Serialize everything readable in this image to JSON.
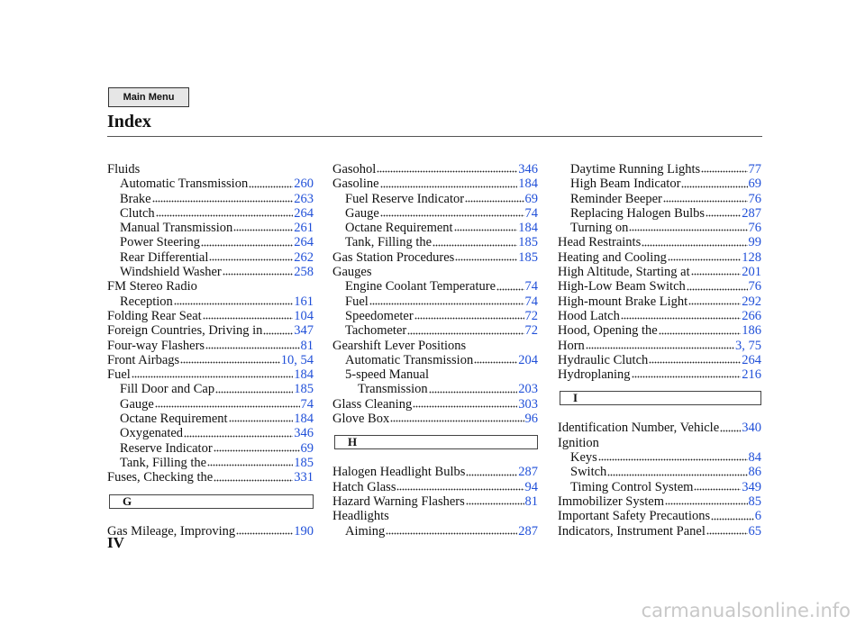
{
  "header": {
    "menu_button": "Main Menu",
    "title": "Index"
  },
  "columns": [
    {
      "items": [
        {
          "text": "Fluids",
          "indent": 0
        },
        {
          "text": "Automatic Transmission",
          "indent": 1,
          "page": 260
        },
        {
          "text": "Brake",
          "indent": 1,
          "page": 263
        },
        {
          "text": "Clutch",
          "indent": 1,
          "page": 264
        },
        {
          "text": "Manual Transmission",
          "indent": 1,
          "page": 261
        },
        {
          "text": "Power Steering",
          "indent": 1,
          "page": 264
        },
        {
          "text": "Rear Differential",
          "indent": 1,
          "page": 262
        },
        {
          "text": "Windshield Washer",
          "indent": 1,
          "page": 258
        },
        {
          "text": "FM Stereo Radio",
          "indent": 0
        },
        {
          "text": "Reception",
          "indent": 1,
          "page": 161
        },
        {
          "text": "Folding Rear Seat",
          "indent": 0,
          "page": 104
        },
        {
          "text": "Foreign Countries, Driving in",
          "indent": 0,
          "page": 347
        },
        {
          "text": "Four-way Flashers",
          "indent": 0,
          "page": 81
        },
        {
          "text": "Front Airbags",
          "indent": 0,
          "page": "10, 54"
        },
        {
          "text": "Fuel",
          "indent": 0,
          "page": 184
        },
        {
          "text": "Fill Door and Cap",
          "indent": 1,
          "page": 185
        },
        {
          "text": "Gauge",
          "indent": 1,
          "page": 74
        },
        {
          "text": "Octane Requirement",
          "indent": 1,
          "page": 184
        },
        {
          "text": "Oxygenated",
          "indent": 1,
          "page": 346
        },
        {
          "text": "Reserve Indicator",
          "indent": 1,
          "page": 69
        },
        {
          "text": "Tank, Filling the",
          "indent": 1,
          "page": 185
        },
        {
          "text": "Fuses, Checking the",
          "indent": 0,
          "page": 331
        },
        {
          "section": "G"
        },
        {
          "text": "Gas Mileage, Improving",
          "indent": 0,
          "page": 190
        }
      ]
    },
    {
      "items": [
        {
          "text": "Gasohol",
          "indent": 0,
          "page": 346
        },
        {
          "text": "Gasoline",
          "indent": 0,
          "page": 184
        },
        {
          "text": "Fuel Reserve Indicator",
          "indent": 1,
          "page": 69
        },
        {
          "text": "Gauge",
          "indent": 1,
          "page": 74
        },
        {
          "text": "Octane Requirement",
          "indent": 1,
          "page": 184
        },
        {
          "text": "Tank, Filling the",
          "indent": 1,
          "page": 185
        },
        {
          "text": "Gas Station Procedures",
          "indent": 0,
          "page": 185
        },
        {
          "text": "Gauges",
          "indent": 0
        },
        {
          "text": "Engine Coolant Temperature",
          "indent": 1,
          "page": 74
        },
        {
          "text": "Fuel",
          "indent": 1,
          "page": 74
        },
        {
          "text": "Speedometer",
          "indent": 1,
          "page": 72
        },
        {
          "text": "Tachometer",
          "indent": 1,
          "page": 72
        },
        {
          "text": "Gearshift Lever Positions",
          "indent": 0
        },
        {
          "text": "Automatic Transmission",
          "indent": 1,
          "page": 204
        },
        {
          "text": "5-speed Manual",
          "indent": 1
        },
        {
          "text": "Transmission",
          "indent": 2,
          "page": 203
        },
        {
          "text": "Glass Cleaning",
          "indent": 0,
          "page": 303
        },
        {
          "text": "Glove Box",
          "indent": 0,
          "page": 96
        },
        {
          "section": "H"
        },
        {
          "text": "Halogen Headlight Bulbs",
          "indent": 0,
          "page": 287
        },
        {
          "text": "Hatch Glass",
          "indent": 0,
          "page": 94
        },
        {
          "text": "Hazard Warning Flashers",
          "indent": 0,
          "page": 81
        },
        {
          "text": "Headlights",
          "indent": 0
        },
        {
          "text": "Aiming",
          "indent": 1,
          "page": 287
        }
      ]
    },
    {
      "items": [
        {
          "text": "Daytime Running Lights",
          "indent": 1,
          "page": 77
        },
        {
          "text": "High Beam Indicator",
          "indent": 1,
          "page": 69
        },
        {
          "text": "Reminder Beeper",
          "indent": 1,
          "page": 76
        },
        {
          "text": "Replacing Halogen Bulbs",
          "indent": 1,
          "page": 287
        },
        {
          "text": "Turning on",
          "indent": 1,
          "page": 76
        },
        {
          "text": "Head Restraints",
          "indent": 0,
          "page": 99
        },
        {
          "text": "Heating and Cooling",
          "indent": 0,
          "page": 128
        },
        {
          "text": "High Altitude, Starting at",
          "indent": 0,
          "page": 201
        },
        {
          "text": "High-Low Beam Switch",
          "indent": 0,
          "page": 76
        },
        {
          "text": "High-mount Brake Light",
          "indent": 0,
          "page": 292
        },
        {
          "text": "Hood Latch",
          "indent": 0,
          "page": 266
        },
        {
          "text": "Hood, Opening the",
          "indent": 0,
          "page": 186
        },
        {
          "text": "Horn",
          "indent": 0,
          "page": "3, 75"
        },
        {
          "text": "Hydraulic Clutch",
          "indent": 0,
          "page": 264
        },
        {
          "text": "Hydroplaning",
          "indent": 0,
          "page": 216
        },
        {
          "section": "I"
        },
        {
          "text": "Identification Number, Vehicle",
          "indent": 0,
          "page": 340
        },
        {
          "text": "Ignition",
          "indent": 0
        },
        {
          "text": "Keys",
          "indent": 1,
          "page": 84
        },
        {
          "text": "Switch",
          "indent": 1,
          "page": 86
        },
        {
          "text": "Timing Control System",
          "indent": 1,
          "page": 349
        },
        {
          "text": "Immobilizer System",
          "indent": 0,
          "page": 85
        },
        {
          "text": "Important Safety Precautions",
          "indent": 0,
          "page": 6
        },
        {
          "text": "Indicators, Instrument Panel",
          "indent": 0,
          "page": 65
        }
      ]
    }
  ],
  "footer": {
    "page_number": "IV",
    "watermark": "carmanualsonline.info"
  }
}
